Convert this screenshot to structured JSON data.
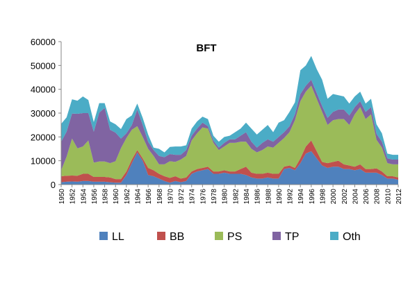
{
  "chart_data": {
    "type": "area",
    "stacked": true,
    "title": "BFT",
    "xlabel": "",
    "ylabel": "",
    "ylim": [
      0,
      60000
    ],
    "y_ticks": [
      0,
      10000,
      20000,
      30000,
      40000,
      50000,
      60000
    ],
    "x_tick_labels": [
      "1950",
      "1952",
      "1954",
      "1956",
      "1958",
      "1960",
      "1962",
      "1964",
      "1966",
      "1968",
      "1970",
      "1972",
      "1974",
      "1976",
      "1978",
      "1980",
      "1982",
      "1984",
      "1986",
      "1988",
      "1990",
      "1992",
      "1994",
      "1996",
      "1998",
      "2000",
      "2002",
      "2004",
      "2006",
      "2008",
      "2010",
      "2012"
    ],
    "grid": false,
    "legend_position": "bottom",
    "x": [
      1950,
      1951,
      1952,
      1953,
      1954,
      1955,
      1956,
      1957,
      1958,
      1959,
      1960,
      1961,
      1962,
      1963,
      1964,
      1965,
      1966,
      1967,
      1968,
      1969,
      1970,
      1971,
      1972,
      1973,
      1974,
      1975,
      1976,
      1977,
      1978,
      1979,
      1980,
      1981,
      1982,
      1983,
      1984,
      1985,
      1986,
      1987,
      1988,
      1989,
      1990,
      1991,
      1992,
      1993,
      1994,
      1995,
      1996,
      1997,
      1998,
      1999,
      2000,
      2001,
      2002,
      2003,
      2004,
      2005,
      2006,
      2007,
      2008,
      2009,
      2010,
      2011,
      2012
    ],
    "series": [
      {
        "name": "LL",
        "color": "#4f81bd",
        "values": [
          1000,
          1200,
          1300,
          1200,
          1500,
          1500,
          1200,
          1200,
          1200,
          1000,
          800,
          800,
          4000,
          9000,
          13500,
          10000,
          4000,
          3500,
          2500,
          1500,
          800,
          1500,
          1000,
          1500,
          4500,
          5500,
          6000,
          6500,
          4500,
          4500,
          5000,
          4500,
          4500,
          4500,
          4000,
          3000,
          2500,
          2500,
          3000,
          2500,
          2500,
          6500,
          7000,
          6000,
          9000,
          13000,
          14000,
          11000,
          8000,
          7000,
          7500,
          7500,
          6500,
          6500,
          6000,
          6500,
          5000,
          5000,
          5000,
          4000,
          2500,
          2500,
          2000
        ]
      },
      {
        "name": "BB",
        "color": "#c0504d",
        "values": [
          2500,
          2500,
          2500,
          2500,
          3000,
          3000,
          2000,
          2000,
          2000,
          2000,
          1500,
          1500,
          1500,
          1500,
          1000,
          1000,
          3000,
          2500,
          2000,
          2000,
          2000,
          2000,
          1500,
          1500,
          1000,
          1000,
          1000,
          1000,
          1000,
          1000,
          1000,
          1000,
          1000,
          2000,
          3500,
          2000,
          2000,
          2000,
          2000,
          2000,
          2000,
          1000,
          1000,
          1000,
          2000,
          3000,
          4500,
          3000,
          1500,
          2000,
          2000,
          2500,
          2000,
          1500,
          1500,
          2000,
          1500,
          1500,
          1800,
          1500,
          1000,
          1000,
          1000
        ]
      },
      {
        "name": "PS",
        "color": "#9bbb59",
        "values": [
          2500,
          8000,
          15500,
          11500,
          11500,
          14000,
          6000,
          6500,
          6500,
          6000,
          7500,
          13000,
          14000,
          12500,
          10000,
          9000,
          8000,
          6000,
          4000,
          5000,
          7000,
          6000,
          8000,
          9000,
          13000,
          15000,
          17000,
          16000,
          12000,
          9000,
          10000,
          12000,
          12000,
          11500,
          10500,
          10000,
          9000,
          10000,
          11000,
          11000,
          13000,
          12000,
          14000,
          20000,
          24000,
          23000,
          23000,
          22000,
          21000,
          16000,
          17500,
          17500,
          19000,
          17000,
          22000,
          24000,
          21000,
          23000,
          12000,
          10000,
          5500,
          5000,
          5500
        ]
      },
      {
        "name": "TP",
        "color": "#8064a2",
        "values": [
          12000,
          10500,
          10500,
          14500,
          14000,
          11500,
          13000,
          20500,
          22500,
          14000,
          12000,
          4000,
          2000,
          2000,
          7000,
          5000,
          3000,
          2500,
          3500,
          3000,
          3000,
          3000,
          2000,
          2500,
          2000,
          2000,
          2000,
          1000,
          1000,
          1000,
          1500,
          1500,
          1500,
          2500,
          4000,
          3000,
          2000,
          3000,
          3000,
          2500,
          2500,
          2500,
          2500,
          2500,
          3000,
          2500,
          2500,
          2500,
          2500,
          3000,
          3500,
          4000,
          4000,
          4000,
          3000,
          2500,
          3000,
          3000,
          2500,
          2500,
          2000,
          2000,
          2000
        ]
      },
      {
        "name": "Oth",
        "color": "#4bacc6",
        "values": [
          7500,
          6000,
          6000,
          5500,
          7000,
          5500,
          4000,
          4000,
          2000,
          3500,
          3500,
          4000,
          6000,
          4000,
          2500,
          3000,
          3000,
          1000,
          3000,
          2000,
          3000,
          3500,
          3500,
          2000,
          3000,
          3000,
          2500,
          3000,
          2000,
          2500,
          2500,
          1500,
          3000,
          3000,
          4000,
          5500,
          5500,
          5500,
          6000,
          4000,
          6000,
          5000,
          6000,
          5000,
          10000,
          8500,
          10000,
          10000,
          11000,
          8000,
          7500,
          6000,
          5500,
          5000,
          4500,
          4000,
          3500,
          3500,
          4000,
          3500,
          2000,
          2000,
          2000
        ]
      }
    ]
  }
}
